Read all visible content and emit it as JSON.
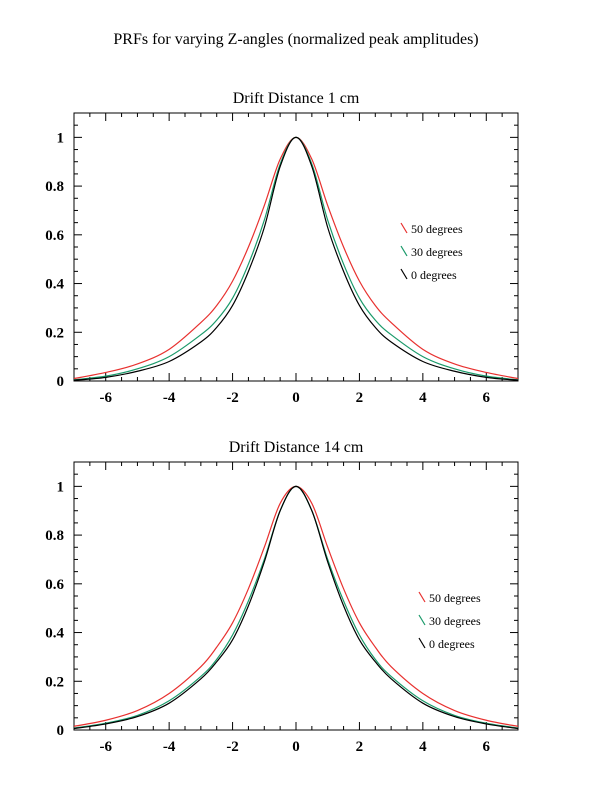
{
  "figure_title": "PRFs for varying Z-angles (normalized peak amplitudes)",
  "colors": {
    "50 degrees": "#e8312f",
    "30 degrees": "#1a9a6a",
    "0 degrees": "#000000"
  },
  "chart_data": [
    {
      "type": "line",
      "title": "Drift Distance 1 cm",
      "xlabel": "",
      "ylabel": "",
      "xlim": [
        -7,
        7
      ],
      "ylim": [
        0,
        1.1
      ],
      "xticks": [
        -6,
        -4,
        -2,
        0,
        2,
        4,
        6
      ],
      "yticks": [
        0,
        0.2,
        0.4,
        0.6,
        0.8,
        1
      ],
      "ytick_labels": [
        "0",
        "0.2",
        "0.4",
        "0.6",
        "0.8",
        "1"
      ],
      "grid": false,
      "legend_position": "right",
      "x": [
        -7,
        -6,
        -5,
        -4,
        -3,
        -2.5,
        -2,
        -1.5,
        -1,
        -0.5,
        0,
        0.5,
        1,
        1.5,
        2,
        2.5,
        3,
        4,
        5,
        6,
        7
      ],
      "series": [
        {
          "name": "50 degrees",
          "color": "#e8312f",
          "values": [
            0.01,
            0.035,
            0.07,
            0.13,
            0.24,
            0.31,
            0.41,
            0.55,
            0.72,
            0.91,
            1.0,
            0.91,
            0.72,
            0.55,
            0.41,
            0.31,
            0.24,
            0.13,
            0.07,
            0.035,
            0.01
          ]
        },
        {
          "name": "30 degrees",
          "color": "#1a9a6a",
          "values": [
            0.005,
            0.02,
            0.05,
            0.1,
            0.19,
            0.25,
            0.34,
            0.48,
            0.66,
            0.89,
            1.0,
            0.89,
            0.66,
            0.48,
            0.34,
            0.25,
            0.19,
            0.1,
            0.05,
            0.02,
            0.005
          ]
        },
        {
          "name": "0 degrees",
          "color": "#000000",
          "values": [
            0.003,
            0.015,
            0.04,
            0.08,
            0.16,
            0.22,
            0.31,
            0.45,
            0.63,
            0.88,
            1.0,
            0.88,
            0.63,
            0.45,
            0.31,
            0.22,
            0.16,
            0.08,
            0.04,
            0.015,
            0.003
          ]
        }
      ]
    },
    {
      "type": "line",
      "title": "Drift Distance 14 cm",
      "xlabel": "",
      "ylabel": "",
      "xlim": [
        -7,
        7
      ],
      "ylim": [
        0,
        1.1
      ],
      "xticks": [
        -6,
        -4,
        -2,
        0,
        2,
        4,
        6
      ],
      "yticks": [
        0,
        0.2,
        0.4,
        0.6,
        0.8,
        1
      ],
      "ytick_labels": [
        "0",
        "0.2",
        "0.4",
        "0.6",
        "0.8",
        "1"
      ],
      "grid": false,
      "legend_position": "right",
      "x": [
        -7,
        -6,
        -5,
        -4,
        -3,
        -2.5,
        -2,
        -1.5,
        -1,
        -0.5,
        0,
        0.5,
        1,
        1.5,
        2,
        2.5,
        3,
        4,
        5,
        6,
        7
      ],
      "series": [
        {
          "name": "50 degrees",
          "color": "#e8312f",
          "values": [
            0.015,
            0.04,
            0.08,
            0.15,
            0.26,
            0.34,
            0.44,
            0.58,
            0.75,
            0.93,
            1.0,
            0.93,
            0.75,
            0.58,
            0.44,
            0.34,
            0.26,
            0.15,
            0.08,
            0.04,
            0.015
          ]
        },
        {
          "name": "30 degrees",
          "color": "#1a9a6a",
          "values": [
            0.008,
            0.028,
            0.06,
            0.12,
            0.22,
            0.29,
            0.39,
            0.53,
            0.7,
            0.9,
            1.0,
            0.9,
            0.7,
            0.53,
            0.39,
            0.29,
            0.22,
            0.12,
            0.06,
            0.028,
            0.008
          ]
        },
        {
          "name": "0 degrees",
          "color": "#000000",
          "values": [
            0.006,
            0.025,
            0.055,
            0.11,
            0.21,
            0.28,
            0.37,
            0.51,
            0.69,
            0.9,
            1.0,
            0.9,
            0.69,
            0.51,
            0.37,
            0.28,
            0.21,
            0.11,
            0.055,
            0.025,
            0.006
          ]
        }
      ]
    }
  ]
}
